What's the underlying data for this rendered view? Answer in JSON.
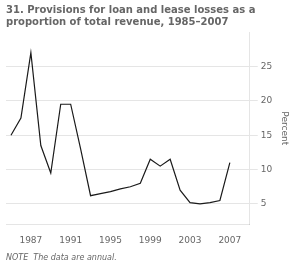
{
  "chart_data": {
    "type": "line",
    "title": "31. Provisions for loan and lease losses as a\nproportion of total revenue, 1985–2007",
    "annotations": [
      "NOTE  The data are annual."
    ],
    "ylabel": "Percent",
    "x": [
      1985,
      1986,
      1987,
      1988,
      1989,
      1990,
      1991,
      1992,
      1993,
      1994,
      1995,
      1996,
      1997,
      1998,
      1999,
      2000,
      2001,
      2002,
      2003,
      2004,
      2005,
      2006,
      2007
    ],
    "values": [
      15.0,
      17.5,
      27.0,
      13.5,
      9.5,
      19.5,
      19.5,
      13.0,
      6.2,
      6.5,
      6.8,
      7.2,
      7.5,
      8.0,
      11.5,
      10.5,
      11.5,
      7.0,
      5.2,
      5.0,
      5.2,
      5.5,
      11.0
    ],
    "color": "#1a1a1a",
    "marker": "none",
    "xlim": [
      1984.5,
      2009.0
    ],
    "xticks": [
      1987,
      1991,
      1995,
      1999,
      2003,
      2007
    ],
    "ylim": [
      2,
      30
    ],
    "yticks": [
      5,
      10,
      15,
      20,
      25
    ],
    "grid": "y"
  }
}
